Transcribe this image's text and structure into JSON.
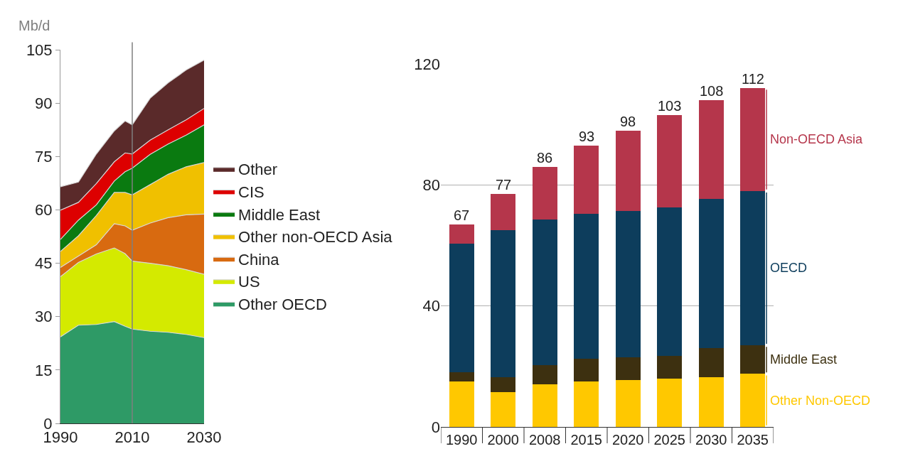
{
  "chart_data": [
    {
      "type": "area",
      "ylabel": "Mb/d",
      "stacked": true,
      "x": [
        1990,
        1995,
        2000,
        2005,
        2008,
        2010,
        2015,
        2020,
        2025,
        2030
      ],
      "xlim": [
        1990,
        2030
      ],
      "xticks": [
        1990,
        2010,
        2030
      ],
      "ylim": [
        0,
        105
      ],
      "yticks": [
        0,
        15,
        30,
        45,
        60,
        75,
        90,
        105
      ],
      "grid": false,
      "legend": "right",
      "ref_lines": [
        {
          "axis": "x",
          "value": 2010,
          "color": "#7f7f7f"
        }
      ],
      "series": [
        {
          "name": "Other OECD",
          "color": "#2e9a66",
          "values": [
            24.3,
            27.6,
            27.8,
            28.6,
            27.3,
            26.5,
            25.9,
            25.6,
            25.0,
            24.1
          ]
        },
        {
          "name": "US",
          "color": "#d4ea00",
          "values": [
            16.9,
            17.6,
            19.8,
            20.7,
            20.4,
            19.1,
            19.1,
            18.7,
            18.2,
            17.8
          ]
        },
        {
          "name": "China",
          "color": "#d86a10",
          "values": [
            2.6,
            1.8,
            2.6,
            6.8,
            7.8,
            8.7,
            11.3,
            13.5,
            15.4,
            16.9
          ]
        },
        {
          "name": "Other non-OECD Asia",
          "color": "#f0c000",
          "values": [
            4.5,
            5.7,
            8.2,
            8.8,
            9.4,
            9.9,
            10.8,
            12.2,
            13.5,
            14.5
          ]
        },
        {
          "name": "Middle East",
          "color": "#0a7a10",
          "values": [
            3.4,
            4.4,
            3.0,
            3.2,
            5.8,
            7.5,
            8.5,
            8.5,
            8.9,
            10.6
          ]
        },
        {
          "name": "CIS",
          "color": "#dd0000",
          "values": [
            8.2,
            5.0,
            6.0,
            5.4,
            5.3,
            4.0,
            4.0,
            4.0,
            4.3,
            4.6
          ]
        },
        {
          "name": "Other",
          "color": "#5a2a2a",
          "values": [
            6.6,
            5.7,
            8.3,
            8.7,
            9.0,
            8.2,
            11.8,
            13.2,
            14.0,
            13.6
          ]
        }
      ]
    },
    {
      "type": "bar",
      "stacked": true,
      "categories": [
        "1990",
        "2000",
        "2008",
        "2015",
        "2020",
        "2025",
        "2030",
        "2035"
      ],
      "ylim": [
        0,
        120
      ],
      "yticks": [
        0,
        40,
        80,
        120
      ],
      "grid": "y",
      "legend": "right",
      "totals": [
        "67",
        "77",
        "86",
        "93",
        "98",
        "103",
        "108",
        "112"
      ],
      "series": [
        {
          "name": "Other Non-OECD",
          "color": "#ffc800",
          "values": [
            15,
            11.5,
            14,
            15,
            15.5,
            16,
            16.5,
            17.5
          ]
        },
        {
          "name": "Middle East",
          "color": "#3d3010",
          "values": [
            3,
            5,
            6.5,
            7.5,
            7.5,
            7.5,
            9.5,
            9.5
          ]
        },
        {
          "name": "OECD",
          "color": "#0d3d5c",
          "values": [
            42.5,
            48.5,
            48,
            48,
            48.5,
            49,
            49.5,
            51
          ]
        },
        {
          "name": "Non-OECD Asia",
          "color": "#b5364b",
          "values": [
            6.5,
            12,
            17.5,
            22.5,
            26.5,
            30.5,
            32.5,
            34
          ]
        }
      ]
    }
  ]
}
